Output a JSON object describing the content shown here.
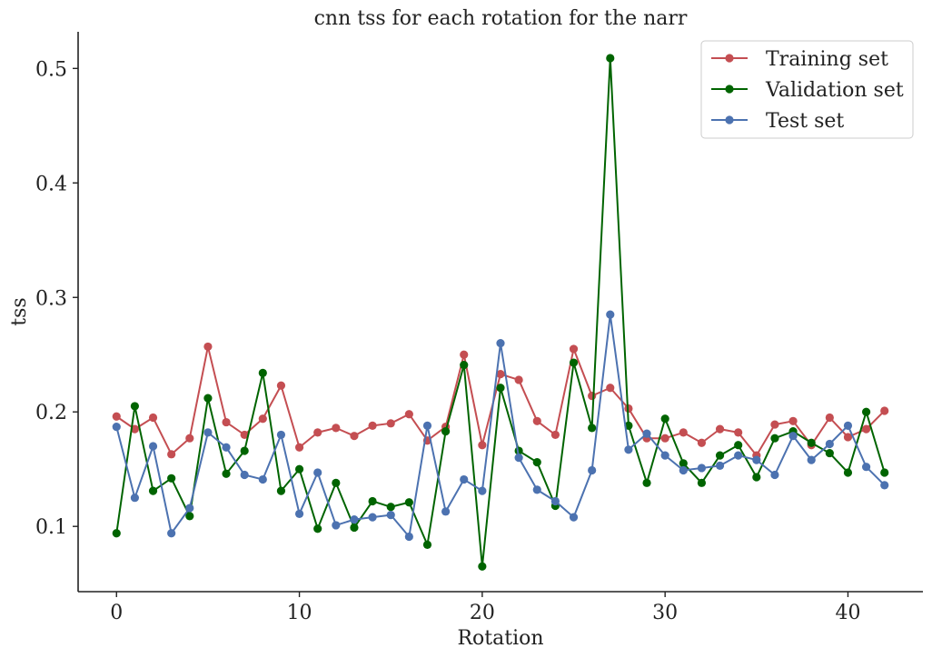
{
  "chart_data": {
    "type": "line",
    "title": "cnn tss for each rotation for the narr",
    "xlabel": "Rotation",
    "ylabel": "tss",
    "xlim": [
      -2.1,
      44.1
    ],
    "ylim": [
      0.043,
      0.532
    ],
    "xticks": [
      0,
      10,
      20,
      30,
      40
    ],
    "xtick_labels": [
      "0",
      "10",
      "20",
      "30",
      "40"
    ],
    "yticks": [
      0.1,
      0.2,
      0.3,
      0.4,
      0.5
    ],
    "ytick_labels": [
      "0.1",
      "0.2",
      "0.3",
      "0.4",
      "0.5"
    ],
    "grid": false,
    "legend_position": "top-right",
    "x": [
      0,
      1,
      2,
      3,
      4,
      5,
      6,
      7,
      8,
      9,
      10,
      11,
      12,
      13,
      14,
      15,
      16,
      17,
      18,
      19,
      20,
      21,
      22,
      23,
      24,
      25,
      26,
      27,
      28,
      29,
      30,
      31,
      32,
      33,
      34,
      35,
      36,
      37,
      38,
      39,
      40,
      41,
      42
    ],
    "series": [
      {
        "name": "Training set",
        "color": "#c44e52",
        "values": [
          0.196,
          0.185,
          0.195,
          0.163,
          0.177,
          0.257,
          0.191,
          0.18,
          0.194,
          0.223,
          0.169,
          0.182,
          0.186,
          0.179,
          0.188,
          0.19,
          0.198,
          0.175,
          0.187,
          0.25,
          0.171,
          0.233,
          0.228,
          0.192,
          0.18,
          0.255,
          0.214,
          0.221,
          0.203,
          0.177,
          0.177,
          0.182,
          0.173,
          0.185,
          0.182,
          0.162,
          0.189,
          0.192,
          0.171,
          0.195,
          0.178,
          0.185,
          0.201
        ]
      },
      {
        "name": "Validation set",
        "color": "#006400",
        "values": [
          0.094,
          0.205,
          0.131,
          0.142,
          0.109,
          0.212,
          0.146,
          0.166,
          0.234,
          0.131,
          0.15,
          0.098,
          0.138,
          0.099,
          0.122,
          0.117,
          0.121,
          0.084,
          0.183,
          0.241,
          0.065,
          0.221,
          0.166,
          0.156,
          0.118,
          0.243,
          0.186,
          0.509,
          0.188,
          0.138,
          0.194,
          0.155,
          0.138,
          0.162,
          0.171,
          0.143,
          0.177,
          0.183,
          0.173,
          0.164,
          0.147,
          0.2,
          0.147
        ]
      },
      {
        "name": "Test set",
        "color": "#4c72b0",
        "values": [
          0.187,
          0.125,
          0.17,
          0.094,
          0.116,
          0.182,
          0.169,
          0.145,
          0.141,
          0.18,
          0.111,
          0.147,
          0.101,
          0.106,
          0.108,
          0.11,
          0.091,
          0.188,
          0.113,
          0.141,
          0.131,
          0.26,
          0.16,
          0.132,
          0.122,
          0.108,
          0.149,
          0.285,
          0.167,
          0.181,
          0.162,
          0.149,
          0.151,
          0.153,
          0.162,
          0.158,
          0.145,
          0.179,
          0.158,
          0.172,
          0.188,
          0.152,
          0.136
        ]
      }
    ]
  }
}
